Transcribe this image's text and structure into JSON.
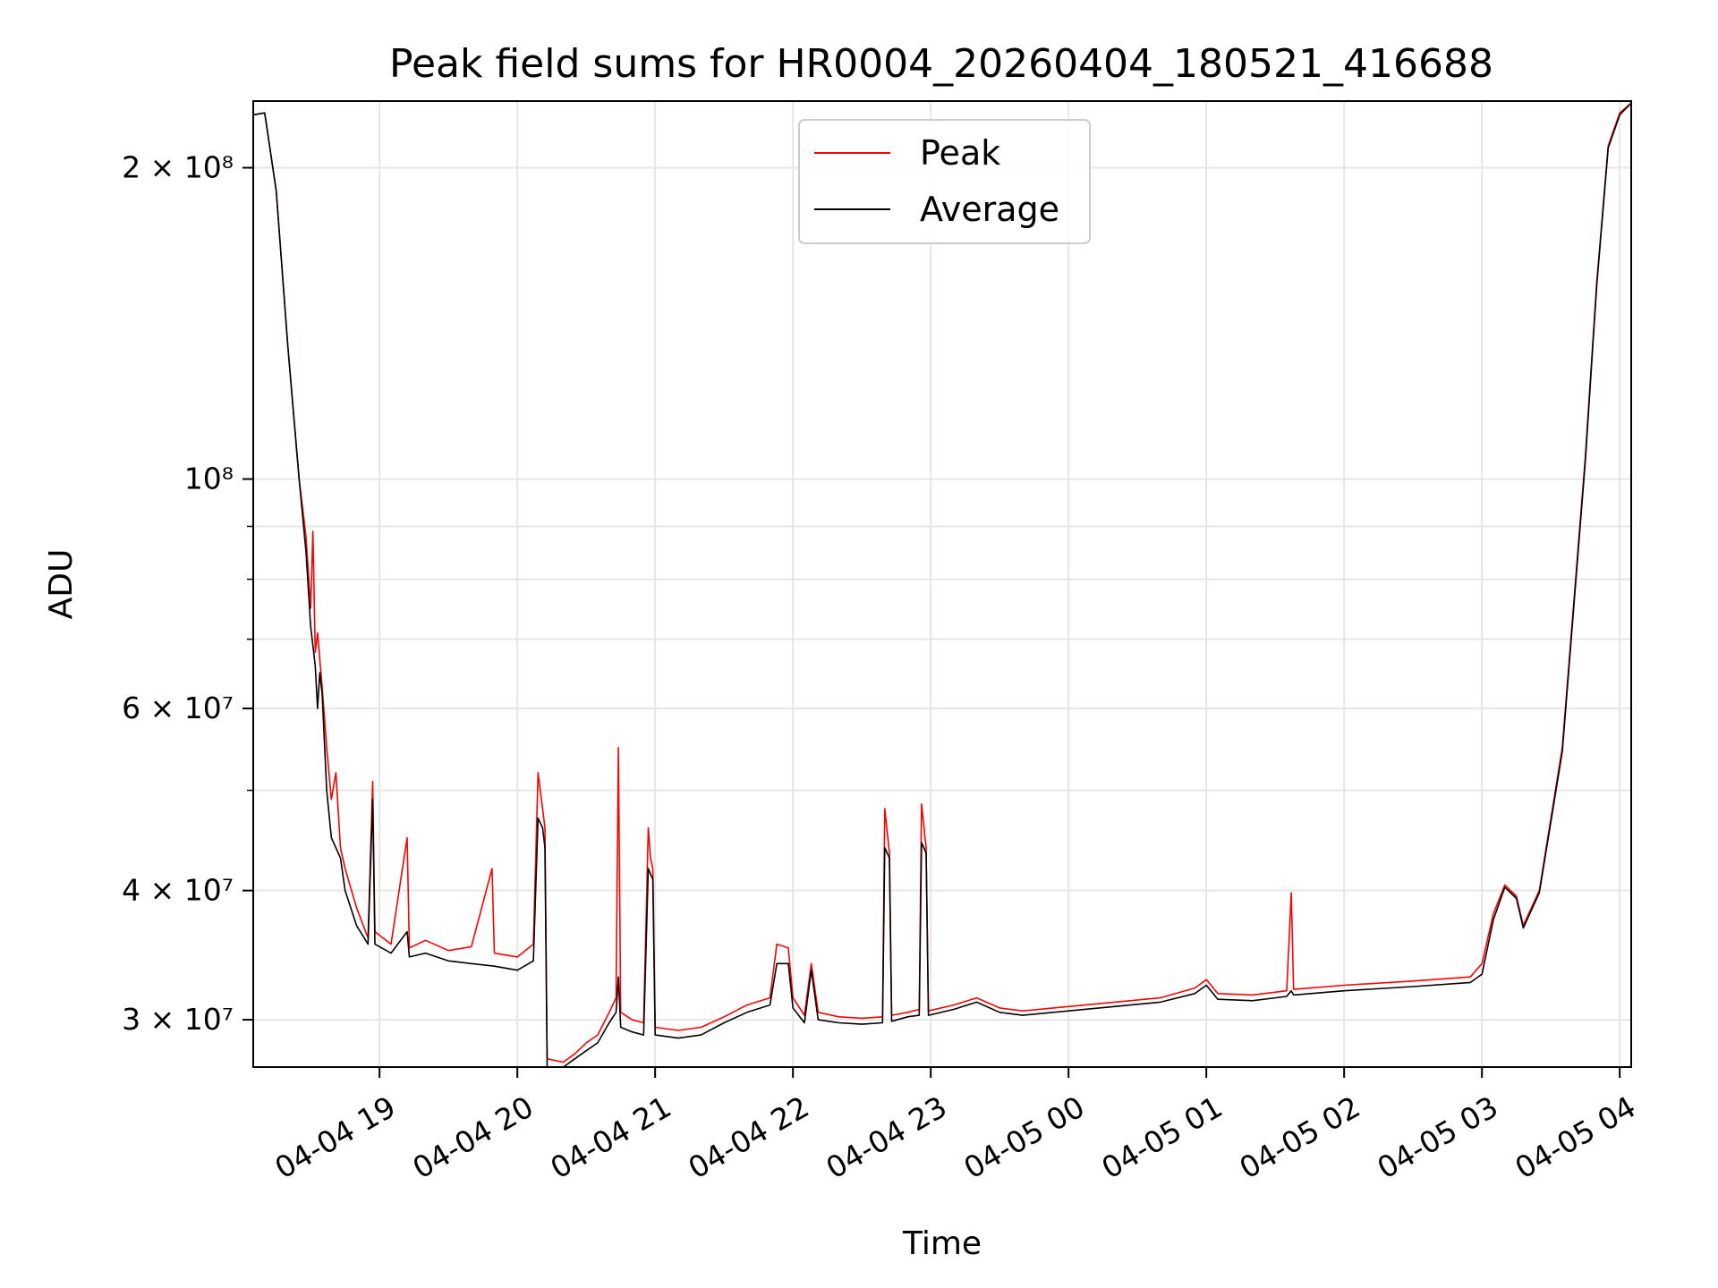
{
  "chart_data": {
    "type": "line",
    "title": "Peak field sums for HR0004_20260404_180521_416688",
    "xlabel": "Time",
    "ylabel": "ADU",
    "y_scale": "log",
    "ylim": [
      27000000,
      232000000
    ],
    "xlim": [
      "2026-04-04 18:05",
      "2026-04-05 04:05"
    ],
    "x_ticks": [
      {
        "value": "2026-04-04 19:00",
        "label": "04-04 19"
      },
      {
        "value": "2026-04-04 20:00",
        "label": "04-04 20"
      },
      {
        "value": "2026-04-04 21:00",
        "label": "04-04 21"
      },
      {
        "value": "2026-04-04 22:00",
        "label": "04-04 22"
      },
      {
        "value": "2026-04-04 23:00",
        "label": "04-04 23"
      },
      {
        "value": "2026-04-05 00:00",
        "label": "04-05 00"
      },
      {
        "value": "2026-04-05 01:00",
        "label": "04-05 01"
      },
      {
        "value": "2026-04-05 02:00",
        "label": "04-05 02"
      },
      {
        "value": "2026-04-05 03:00",
        "label": "04-05 03"
      },
      {
        "value": "2026-04-05 04:00",
        "label": "04-05 04"
      }
    ],
    "y_major_ticks": [
      {
        "value": 30000000,
        "label": "3 × 10⁷"
      },
      {
        "value": 40000000,
        "label": "4 × 10⁷"
      },
      {
        "value": 60000000,
        "label": "6 × 10⁷"
      },
      {
        "value": 100000000,
        "label": "10⁸"
      },
      {
        "value": 200000000,
        "label": "2 × 10⁸"
      }
    ],
    "y_minor_ticks": [
      50000000,
      70000000,
      80000000,
      90000000
    ],
    "grid": true,
    "legend_position": "top-center",
    "series": [
      {
        "name": "Peak",
        "color": "#ff0000",
        "points": [
          [
            "2026-04-04 18:05",
            225000000
          ],
          [
            "2026-04-04 18:10",
            226000000
          ],
          [
            "2026-04-04 18:15",
            190000000
          ],
          [
            "2026-04-04 18:20",
            135000000
          ],
          [
            "2026-04-04 18:25",
            100000000
          ],
          [
            "2026-04-04 18:28",
            88000000
          ],
          [
            "2026-04-04 18:30",
            75000000
          ],
          [
            "2026-04-04 18:31",
            89000000
          ],
          [
            "2026-04-04 18:32",
            68000000
          ],
          [
            "2026-04-04 18:33",
            71000000
          ],
          [
            "2026-04-04 18:35",
            63000000
          ],
          [
            "2026-04-04 18:37",
            55000000
          ],
          [
            "2026-04-04 18:39",
            49000000
          ],
          [
            "2026-04-04 18:41",
            52000000
          ],
          [
            "2026-04-04 18:43",
            44000000
          ],
          [
            "2026-04-04 18:45",
            42000000
          ],
          [
            "2026-04-04 18:50",
            38500000
          ],
          [
            "2026-04-04 18:55",
            36000000
          ],
          [
            "2026-04-04 18:57",
            51000000
          ],
          [
            "2026-04-04 18:58",
            36500000
          ],
          [
            "2026-04-04 19:05",
            35500000
          ],
          [
            "2026-04-04 19:12",
            45000000
          ],
          [
            "2026-04-04 19:13",
            35200000
          ],
          [
            "2026-04-04 19:20",
            35800000
          ],
          [
            "2026-04-04 19:30",
            35000000
          ],
          [
            "2026-04-04 19:40",
            35300000
          ],
          [
            "2026-04-04 19:49",
            42000000
          ],
          [
            "2026-04-04 19:50",
            34800000
          ],
          [
            "2026-04-04 20:00",
            34500000
          ],
          [
            "2026-04-04 20:07",
            35500000
          ],
          [
            "2026-04-04 20:09",
            52000000
          ],
          [
            "2026-04-04 20:11",
            48000000
          ],
          [
            "2026-04-04 20:12",
            46000000
          ],
          [
            "2026-04-04 20:13",
            27500000
          ],
          [
            "2026-04-04 20:20",
            27300000
          ],
          [
            "2026-04-04 20:25",
            27800000
          ],
          [
            "2026-04-04 20:30",
            28500000
          ],
          [
            "2026-04-04 20:35",
            29000000
          ],
          [
            "2026-04-04 20:40",
            30500000
          ],
          [
            "2026-04-04 20:43",
            31500000
          ],
          [
            "2026-04-04 20:44",
            55000000
          ],
          [
            "2026-04-04 20:45",
            30500000
          ],
          [
            "2026-04-04 20:50",
            30000000
          ],
          [
            "2026-04-04 20:55",
            29800000
          ],
          [
            "2026-04-04 20:57",
            46000000
          ],
          [
            "2026-04-04 20:58",
            43000000
          ],
          [
            "2026-04-04 20:59",
            42000000
          ],
          [
            "2026-04-04 21:00",
            29500000
          ],
          [
            "2026-04-04 21:10",
            29300000
          ],
          [
            "2026-04-04 21:20",
            29500000
          ],
          [
            "2026-04-04 21:30",
            30200000
          ],
          [
            "2026-04-04 21:40",
            31000000
          ],
          [
            "2026-04-04 21:50",
            31500000
          ],
          [
            "2026-04-04 21:53",
            35500000
          ],
          [
            "2026-04-04 21:58",
            35200000
          ],
          [
            "2026-04-04 22:00",
            31500000
          ],
          [
            "2026-04-04 22:05",
            30300000
          ],
          [
            "2026-04-04 22:08",
            34000000
          ],
          [
            "2026-04-04 22:11",
            30500000
          ],
          [
            "2026-04-04 22:20",
            30200000
          ],
          [
            "2026-04-04 22:30",
            30100000
          ],
          [
            "2026-04-04 22:39",
            30200000
          ],
          [
            "2026-04-04 22:40",
            48000000
          ],
          [
            "2026-04-04 22:42",
            43500000
          ],
          [
            "2026-04-04 22:43",
            30300000
          ],
          [
            "2026-04-04 22:50",
            30500000
          ],
          [
            "2026-04-04 22:55",
            30700000
          ],
          [
            "2026-04-04 22:56",
            48500000
          ],
          [
            "2026-04-04 22:58",
            44000000
          ],
          [
            "2026-04-04 22:59",
            30600000
          ],
          [
            "2026-04-04 23:10",
            31000000
          ],
          [
            "2026-04-04 23:20",
            31500000
          ],
          [
            "2026-04-04 23:30",
            30800000
          ],
          [
            "2026-04-04 23:40",
            30600000
          ],
          [
            "2026-04-05 00:00",
            30900000
          ],
          [
            "2026-04-05 00:20",
            31200000
          ],
          [
            "2026-04-05 00:40",
            31500000
          ],
          [
            "2026-04-05 00:55",
            32200000
          ],
          [
            "2026-04-05 01:00",
            32800000
          ],
          [
            "2026-04-05 01:05",
            31800000
          ],
          [
            "2026-04-05 01:20",
            31700000
          ],
          [
            "2026-04-05 01:35",
            32000000
          ],
          [
            "2026-04-05 01:37",
            39800000
          ],
          [
            "2026-04-05 01:38",
            32100000
          ],
          [
            "2026-04-05 02:00",
            32400000
          ],
          [
            "2026-04-05 02:30",
            32700000
          ],
          [
            "2026-04-05 02:55",
            33000000
          ],
          [
            "2026-04-05 03:00",
            34000000
          ],
          [
            "2026-04-05 03:05",
            38000000
          ],
          [
            "2026-04-05 03:10",
            40500000
          ],
          [
            "2026-04-05 03:15",
            39500000
          ],
          [
            "2026-04-05 03:18",
            37000000
          ],
          [
            "2026-04-05 03:25",
            40000000
          ],
          [
            "2026-04-05 03:35",
            55000000
          ],
          [
            "2026-04-05 03:45",
            105000000
          ],
          [
            "2026-04-05 03:50",
            155000000
          ],
          [
            "2026-04-05 03:55",
            210000000
          ],
          [
            "2026-04-05 04:00",
            226000000
          ],
          [
            "2026-04-05 04:05",
            231000000
          ]
        ]
      },
      {
        "name": "Average",
        "color": "#000000",
        "points": [
          [
            "2026-04-04 18:05",
            225000000
          ],
          [
            "2026-04-04 18:10",
            226000000
          ],
          [
            "2026-04-04 18:15",
            190000000
          ],
          [
            "2026-04-04 18:20",
            135000000
          ],
          [
            "2026-04-04 18:25",
            100000000
          ],
          [
            "2026-04-04 18:28",
            85000000
          ],
          [
            "2026-04-04 18:30",
            72000000
          ],
          [
            "2026-04-04 18:32",
            66000000
          ],
          [
            "2026-04-04 18:33",
            60000000
          ],
          [
            "2026-04-04 18:34",
            65000000
          ],
          [
            "2026-04-04 18:35",
            62000000
          ],
          [
            "2026-04-04 18:37",
            50000000
          ],
          [
            "2026-04-04 18:39",
            45000000
          ],
          [
            "2026-04-04 18:41",
            44000000
          ],
          [
            "2026-04-04 18:43",
            43000000
          ],
          [
            "2026-04-04 18:45",
            40000000
          ],
          [
            "2026-04-04 18:50",
            37000000
          ],
          [
            "2026-04-04 18:55",
            35500000
          ],
          [
            "2026-04-04 18:57",
            49000000
          ],
          [
            "2026-04-04 18:58",
            35500000
          ],
          [
            "2026-04-04 19:05",
            34800000
          ],
          [
            "2026-04-04 19:12",
            36500000
          ],
          [
            "2026-04-04 19:13",
            34500000
          ],
          [
            "2026-04-04 19:20",
            34800000
          ],
          [
            "2026-04-04 19:30",
            34200000
          ],
          [
            "2026-04-04 19:40",
            34000000
          ],
          [
            "2026-04-04 19:50",
            33800000
          ],
          [
            "2026-04-04 20:00",
            33500000
          ],
          [
            "2026-04-04 20:07",
            34200000
          ],
          [
            "2026-04-04 20:09",
            47000000
          ],
          [
            "2026-04-04 20:11",
            46000000
          ],
          [
            "2026-04-04 20:12",
            44000000
          ],
          [
            "2026-04-04 20:13",
            27000000
          ],
          [
            "2026-04-04 20:20",
            27000000
          ],
          [
            "2026-04-04 20:25",
            27500000
          ],
          [
            "2026-04-04 20:30",
            28000000
          ],
          [
            "2026-04-04 20:35",
            28500000
          ],
          [
            "2026-04-04 20:40",
            29800000
          ],
          [
            "2026-04-04 20:43",
            30500000
          ],
          [
            "2026-04-04 20:44",
            33000000
          ],
          [
            "2026-04-04 20:45",
            29500000
          ],
          [
            "2026-04-04 20:50",
            29200000
          ],
          [
            "2026-04-04 20:55",
            29000000
          ],
          [
            "2026-04-04 20:57",
            42000000
          ],
          [
            "2026-04-04 20:58",
            41500000
          ],
          [
            "2026-04-04 20:59",
            41000000
          ],
          [
            "2026-04-04 21:00",
            29000000
          ],
          [
            "2026-04-04 21:10",
            28800000
          ],
          [
            "2026-04-04 21:20",
            29000000
          ],
          [
            "2026-04-04 21:30",
            29800000
          ],
          [
            "2026-04-04 21:40",
            30500000
          ],
          [
            "2026-04-04 21:50",
            31000000
          ],
          [
            "2026-04-04 21:53",
            34000000
          ],
          [
            "2026-04-04 21:58",
            34000000
          ],
          [
            "2026-04-04 22:00",
            30800000
          ],
          [
            "2026-04-04 22:05",
            29800000
          ],
          [
            "2026-04-04 22:08",
            33500000
          ],
          [
            "2026-04-04 22:11",
            30000000
          ],
          [
            "2026-04-04 22:20",
            29800000
          ],
          [
            "2026-04-04 22:30",
            29700000
          ],
          [
            "2026-04-04 22:39",
            29800000
          ],
          [
            "2026-04-04 22:40",
            44000000
          ],
          [
            "2026-04-04 22:42",
            43000000
          ],
          [
            "2026-04-04 22:43",
            29900000
          ],
          [
            "2026-04-04 22:50",
            30200000
          ],
          [
            "2026-04-04 22:55",
            30300000
          ],
          [
            "2026-04-04 22:56",
            44500000
          ],
          [
            "2026-04-04 22:58",
            43500000
          ],
          [
            "2026-04-04 22:59",
            30300000
          ],
          [
            "2026-04-04 23:10",
            30700000
          ],
          [
            "2026-04-04 23:20",
            31200000
          ],
          [
            "2026-04-04 23:30",
            30500000
          ],
          [
            "2026-04-04 23:40",
            30300000
          ],
          [
            "2026-04-05 00:00",
            30600000
          ],
          [
            "2026-04-05 00:20",
            30900000
          ],
          [
            "2026-04-05 00:40",
            31200000
          ],
          [
            "2026-04-05 00:55",
            31800000
          ],
          [
            "2026-04-05 01:00",
            32400000
          ],
          [
            "2026-04-05 01:05",
            31400000
          ],
          [
            "2026-04-05 01:20",
            31300000
          ],
          [
            "2026-04-05 01:35",
            31600000
          ],
          [
            "2026-04-05 01:37",
            32000000
          ],
          [
            "2026-04-05 01:38",
            31700000
          ],
          [
            "2026-04-05 02:00",
            32000000
          ],
          [
            "2026-04-05 02:30",
            32300000
          ],
          [
            "2026-04-05 02:55",
            32600000
          ],
          [
            "2026-04-05 03:00",
            33200000
          ],
          [
            "2026-04-05 03:05",
            37500000
          ],
          [
            "2026-04-05 03:10",
            40300000
          ],
          [
            "2026-04-05 03:15",
            39300000
          ],
          [
            "2026-04-05 03:18",
            36800000
          ],
          [
            "2026-04-05 03:25",
            39800000
          ],
          [
            "2026-04-05 03:35",
            54500000
          ],
          [
            "2026-04-05 03:45",
            104000000
          ],
          [
            "2026-04-05 03:50",
            154000000
          ],
          [
            "2026-04-05 03:55",
            209000000
          ],
          [
            "2026-04-05 04:00",
            225000000
          ],
          [
            "2026-04-05 04:05",
            231000000
          ]
        ]
      }
    ]
  }
}
